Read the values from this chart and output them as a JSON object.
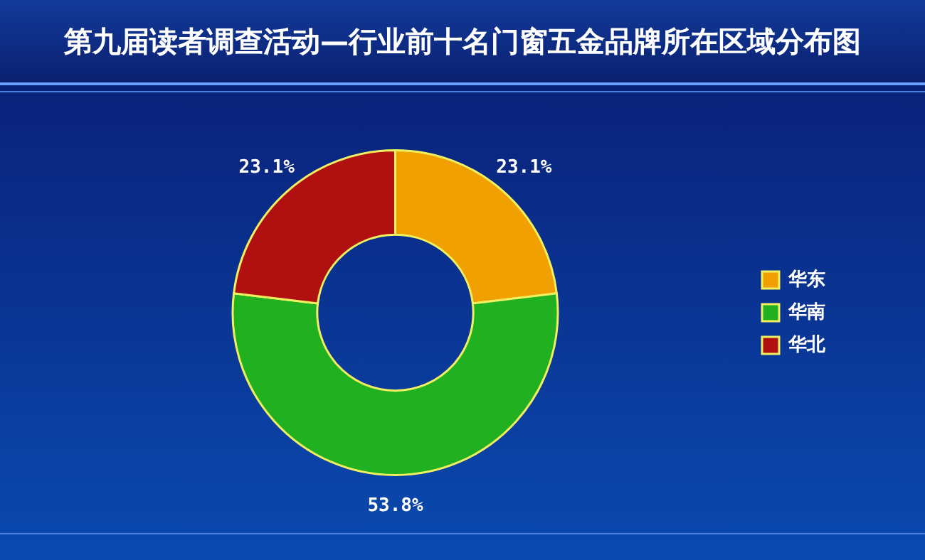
{
  "chart_data": {
    "type": "donut",
    "title": "第九届读者调查活动—行业前十名门窗五金品牌所在区域分布图",
    "categories": [
      "华东",
      "华南",
      "华北"
    ],
    "values": [
      23.1,
      53.8,
      23.1
    ],
    "colors": [
      "#f0a000",
      "#20b020",
      "#b01010"
    ],
    "value_labels": [
      "23.1%",
      "53.8%",
      "23.1%"
    ],
    "legend": "right"
  }
}
